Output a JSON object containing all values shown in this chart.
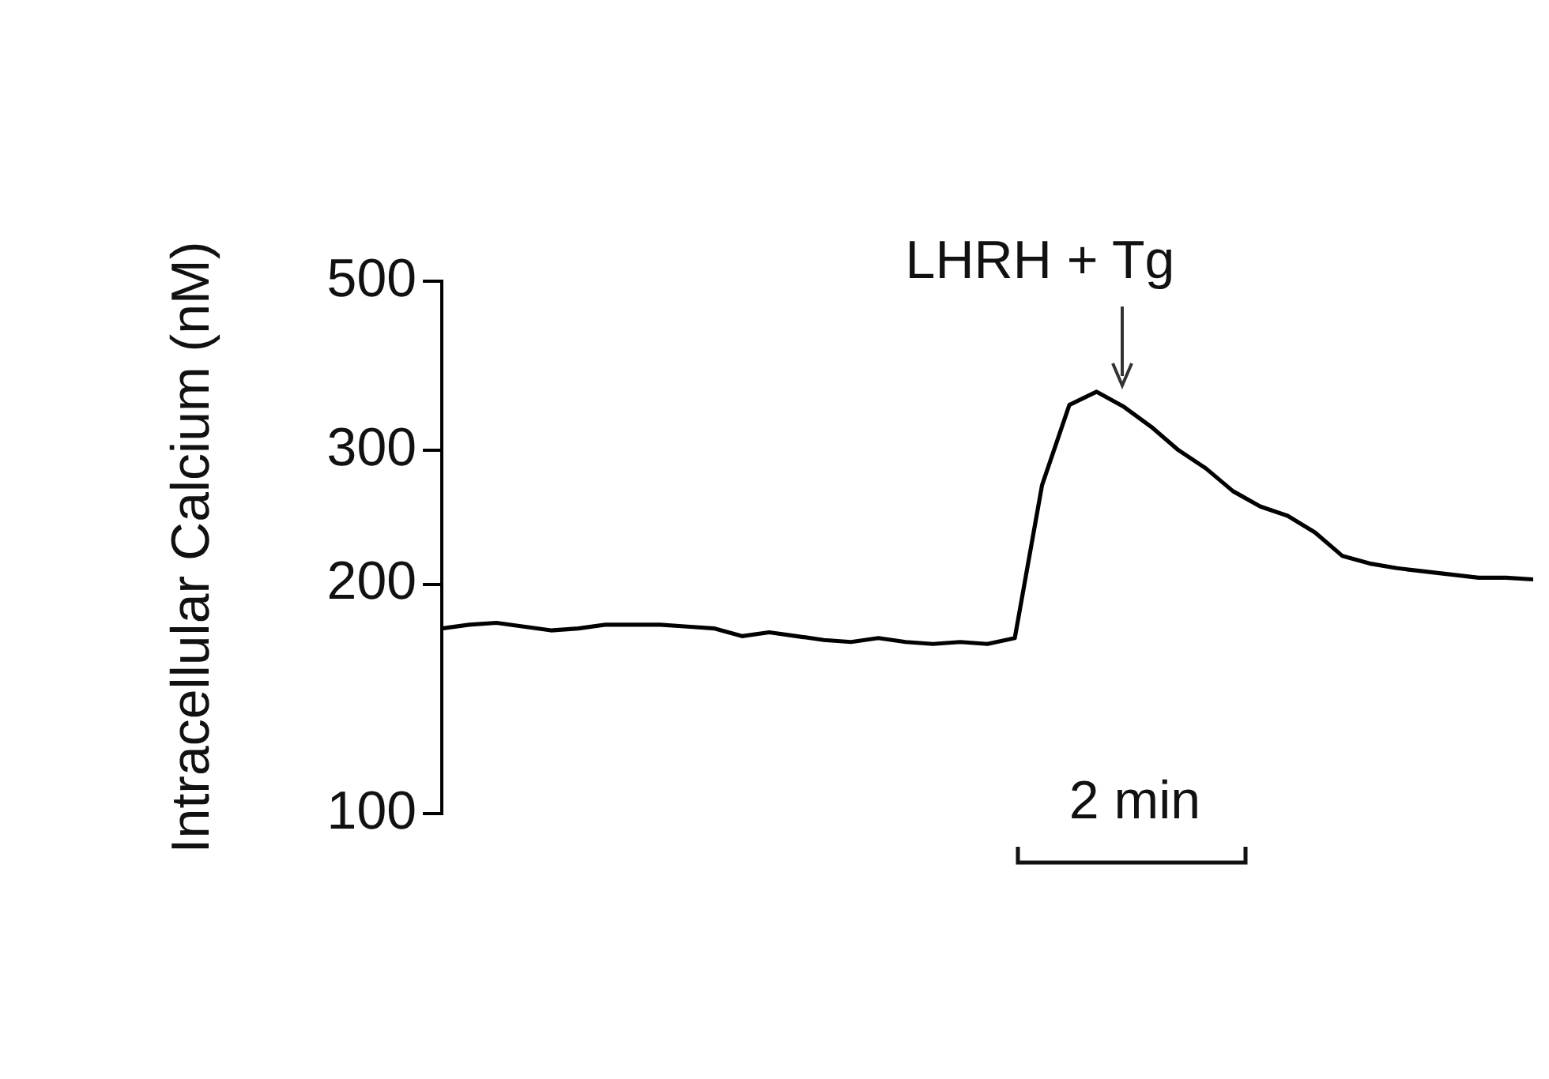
{
  "chart_data": {
    "type": "line",
    "ylabel": "Intracellular Calcium (nM)",
    "log": true,
    "ylim": [
      100,
      500
    ],
    "yticks": [
      100,
      200,
      300,
      500
    ],
    "grid": false,
    "legend": false,
    "tick_labels": "y",
    "marker": "none",
    "line_style": "solid",
    "categories": [
      null,
      null,
      null,
      null,
      null,
      null,
      null,
      null,
      null,
      null,
      null,
      null,
      null,
      null,
      null,
      null,
      null,
      null,
      null,
      null,
      null,
      null,
      null,
      null,
      null,
      null,
      null,
      null,
      null,
      null,
      null,
      null,
      null,
      null,
      null,
      null,
      null,
      null,
      null,
      null,
      null
    ],
    "series": [
      {
        "color": "#000000",
        "values": [
          175,
          177,
          178,
          176,
          174,
          175,
          177,
          177,
          177,
          176,
          175,
          171,
          173,
          171,
          169,
          168,
          170,
          168,
          167,
          168,
          167,
          170,
          270,
          344,
          358,
          342,
          322,
          300,
          284,
          265,
          253,
          246,
          234,
          218,
          213,
          210,
          208,
          206,
          204,
          204,
          203
        ]
      }
    ],
    "annotations": [
      "LHRH + Tg",
      "2 min"
    ]
  }
}
